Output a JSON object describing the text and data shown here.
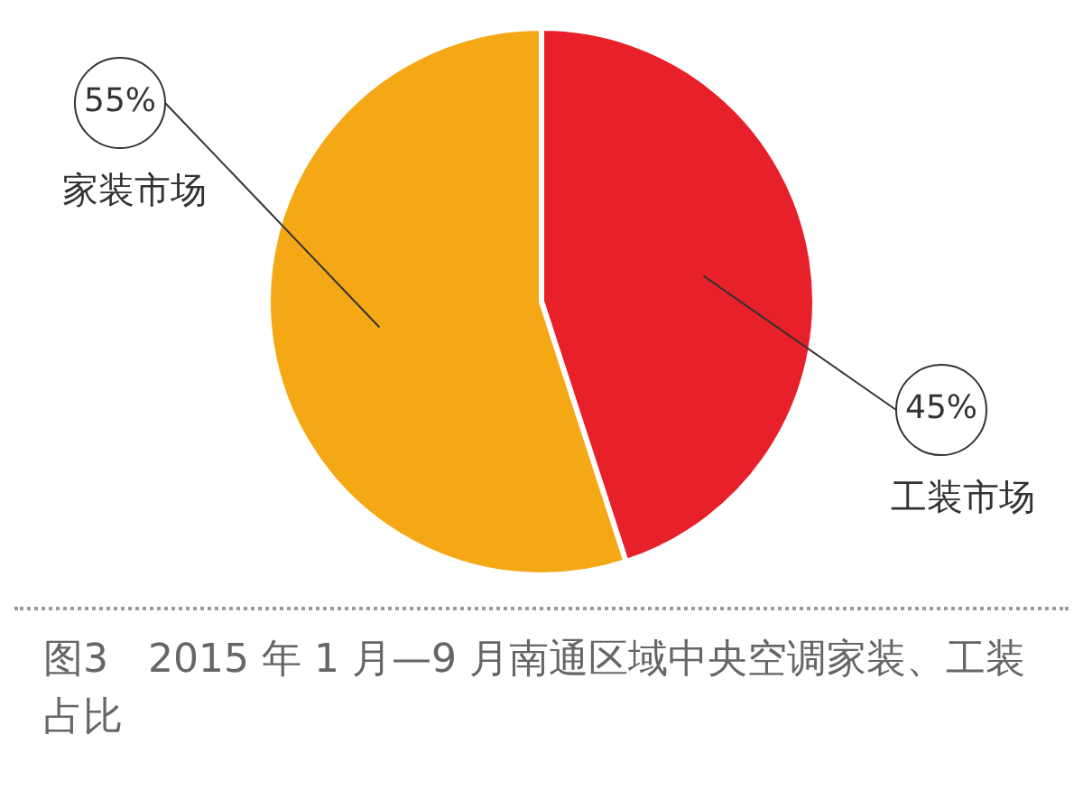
{
  "chart_data": {
    "type": "pie",
    "title": "图3　2015 年 1 月—9 月南通区域中央空调家装、工装占比",
    "categories": [
      "工装市场",
      "家装市场"
    ],
    "values": [
      45,
      55
    ],
    "colors": [
      "#e8202a",
      "#f5a816"
    ],
    "value_labels": [
      "45%",
      "55%"
    ],
    "legend": false
  }
}
